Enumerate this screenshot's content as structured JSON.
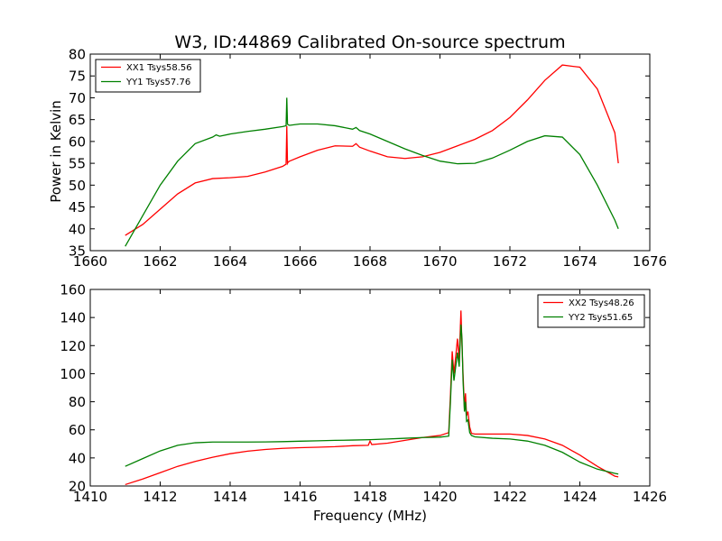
{
  "figure": {
    "title": "W3, ID:44869 Calibrated On-source spectrum",
    "ylabel": "Power in Kelvin",
    "xlabel": "Frequency (MHz)"
  },
  "chart_data": [
    {
      "type": "line",
      "xlim": [
        1660,
        1676
      ],
      "ylim": [
        35,
        80
      ],
      "xticks": [
        1660,
        1662,
        1664,
        1666,
        1668,
        1670,
        1672,
        1674,
        1676
      ],
      "yticks": [
        35,
        40,
        45,
        50,
        55,
        60,
        65,
        70,
        75,
        80
      ],
      "grid": false,
      "legend_position": "top-left",
      "series": [
        {
          "name": "XX1 Tsys58.56",
          "color": "#ff0000",
          "x": [
            1661.0,
            1661.5,
            1662.0,
            1662.5,
            1663.0,
            1663.5,
            1664.0,
            1664.5,
            1665.0,
            1665.5,
            1665.6,
            1665.62,
            1665.64,
            1665.66,
            1665.7,
            1666.0,
            1666.5,
            1667.0,
            1667.5,
            1667.6,
            1667.7,
            1668.0,
            1668.5,
            1669.0,
            1669.5,
            1670.0,
            1670.5,
            1671.0,
            1671.5,
            1672.0,
            1672.5,
            1673.0,
            1673.5,
            1674.0,
            1674.5,
            1675.0,
            1675.1
          ],
          "y": [
            38.5,
            41.0,
            44.5,
            48.0,
            50.5,
            51.5,
            51.7,
            52.0,
            53.0,
            54.3,
            54.8,
            63.5,
            55.0,
            55.3,
            55.5,
            56.5,
            58.0,
            59.0,
            58.9,
            59.5,
            58.7,
            57.8,
            56.5,
            56.1,
            56.5,
            57.5,
            59.0,
            60.5,
            62.5,
            65.5,
            69.5,
            74.0,
            77.5,
            77.0,
            72.0,
            62.0,
            55.0
          ]
        },
        {
          "name": "YY1 Tsys57.76",
          "color": "#008000",
          "x": [
            1661.0,
            1661.5,
            1662.0,
            1662.5,
            1663.0,
            1663.5,
            1663.6,
            1663.7,
            1664.0,
            1664.5,
            1665.0,
            1665.5,
            1665.6,
            1665.62,
            1665.64,
            1665.66,
            1665.7,
            1666.0,
            1666.5,
            1667.0,
            1667.5,
            1667.6,
            1667.7,
            1668.0,
            1668.5,
            1669.0,
            1669.5,
            1670.0,
            1670.5,
            1671.0,
            1671.5,
            1672.0,
            1672.5,
            1673.0,
            1673.5,
            1674.0,
            1674.5,
            1675.0,
            1675.1
          ],
          "y": [
            36.0,
            43.0,
            50.0,
            55.5,
            59.5,
            61.0,
            61.5,
            61.2,
            61.7,
            62.3,
            62.8,
            63.4,
            63.6,
            70.0,
            64.0,
            63.8,
            63.7,
            64.0,
            64.0,
            63.6,
            62.8,
            63.2,
            62.5,
            61.7,
            60.0,
            58.3,
            56.8,
            55.5,
            54.9,
            55.0,
            56.2,
            58.0,
            60.0,
            61.3,
            61.0,
            57.0,
            50.0,
            42.0,
            40.0
          ]
        }
      ]
    },
    {
      "type": "line",
      "xlim": [
        1410,
        1426
      ],
      "ylim": [
        20,
        160
      ],
      "xticks": [
        1410,
        1412,
        1414,
        1416,
        1418,
        1420,
        1422,
        1424,
        1426
      ],
      "yticks": [
        20,
        40,
        60,
        80,
        100,
        120,
        140,
        160
      ],
      "grid": false,
      "legend_position": "top-right",
      "series": [
        {
          "name": "XX2 Tsys48.26",
          "color": "#ff0000",
          "x": [
            1411.0,
            1411.5,
            1412.0,
            1412.5,
            1413.0,
            1413.5,
            1414.0,
            1414.5,
            1415.0,
            1415.5,
            1416.0,
            1416.5,
            1417.0,
            1417.5,
            1417.95,
            1418.0,
            1418.05,
            1418.5,
            1419.0,
            1419.5,
            1420.0,
            1420.25,
            1420.3,
            1420.35,
            1420.4,
            1420.45,
            1420.5,
            1420.55,
            1420.6,
            1420.63,
            1420.66,
            1420.7,
            1420.73,
            1420.76,
            1420.8,
            1420.85,
            1420.9,
            1421.0,
            1421.5,
            1422.0,
            1422.5,
            1423.0,
            1423.5,
            1424.0,
            1424.5,
            1425.0,
            1425.1
          ],
          "y": [
            21.0,
            25.0,
            29.5,
            34.0,
            37.5,
            40.5,
            43.0,
            44.8,
            46.0,
            46.8,
            47.3,
            47.6,
            48.0,
            48.7,
            49.0,
            52.0,
            49.5,
            50.5,
            52.5,
            54.5,
            56.0,
            58.0,
            85.0,
            116.0,
            100.0,
            112.0,
            125.0,
            110.0,
            145.0,
            120.0,
            100.0,
            75.0,
            86.0,
            70.0,
            73.0,
            62.0,
            57.5,
            57.0,
            57.0,
            57.0,
            56.0,
            53.5,
            49.0,
            42.0,
            34.0,
            27.0,
            26.5
          ]
        },
        {
          "name": "YY2 Tsys51.65",
          "color": "#008000",
          "x": [
            1411.0,
            1411.5,
            1412.0,
            1412.5,
            1413.0,
            1413.5,
            1414.0,
            1414.5,
            1415.0,
            1415.5,
            1416.0,
            1416.5,
            1417.0,
            1417.5,
            1418.0,
            1418.5,
            1419.0,
            1419.5,
            1420.0,
            1420.25,
            1420.3,
            1420.35,
            1420.4,
            1420.45,
            1420.5,
            1420.55,
            1420.6,
            1420.63,
            1420.66,
            1420.7,
            1420.73,
            1420.76,
            1420.8,
            1420.85,
            1420.9,
            1421.0,
            1421.5,
            1422.0,
            1422.5,
            1423.0,
            1423.5,
            1424.0,
            1424.5,
            1425.0,
            1425.1
          ],
          "y": [
            34.0,
            39.5,
            45.0,
            49.0,
            50.8,
            51.3,
            51.3,
            51.3,
            51.4,
            51.6,
            51.9,
            52.2,
            52.5,
            52.7,
            53.0,
            53.5,
            54.0,
            54.5,
            54.8,
            55.5,
            80.0,
            110.0,
            95.0,
            105.0,
            115.0,
            105.0,
            135.0,
            125.0,
            95.0,
            73.0,
            80.0,
            66.0,
            67.0,
            58.0,
            56.0,
            55.0,
            54.0,
            53.5,
            52.0,
            49.0,
            44.0,
            37.0,
            32.0,
            29.0,
            28.5
          ]
        }
      ]
    }
  ]
}
